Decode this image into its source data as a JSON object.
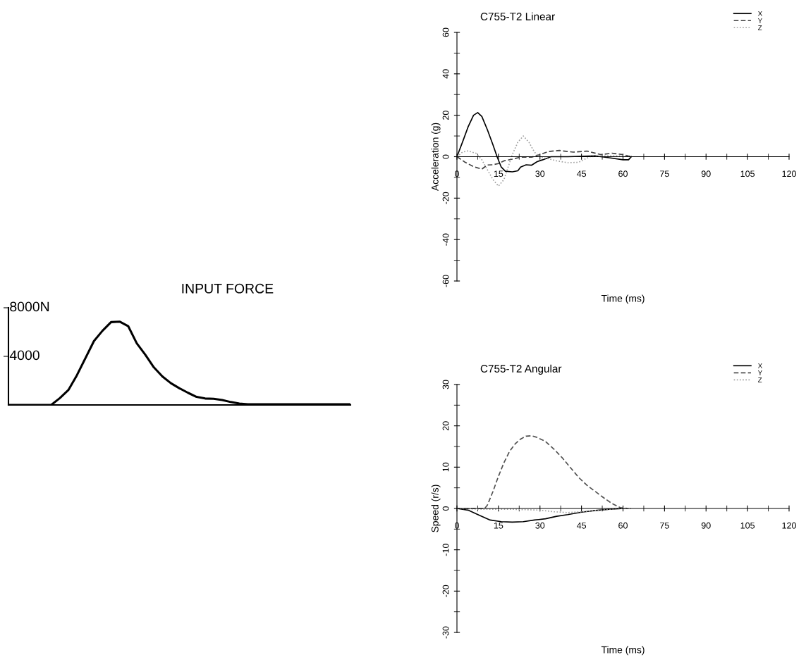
{
  "chart_data": [
    {
      "type": "line",
      "title": "INPUT FORCE",
      "categories": [
        null,
        null,
        null,
        null,
        null,
        null,
        null,
        null,
        null,
        null,
        null,
        null,
        null,
        null,
        null,
        null,
        null,
        null,
        null,
        null,
        null,
        null,
        null,
        null,
        null,
        null,
        null,
        null,
        null,
        null,
        null,
        null,
        null,
        null,
        null,
        null,
        null,
        null,
        null,
        null,
        null
      ],
      "series": [
        {
          "color": "#000000",
          "values": [
            0,
            0,
            0,
            0,
            0,
            0,
            560,
            1220,
            2440,
            3850,
            5260,
            6110,
            6820,
            6860,
            6490,
            5080,
            4140,
            3100,
            2350,
            1790,
            1370,
            1000,
            660,
            530,
            510,
            410,
            240,
            110,
            60,
            60,
            60,
            60,
            60,
            60,
            60,
            60,
            60,
            60,
            60,
            60,
            60
          ]
        }
      ],
      "ylim": [
        0,
        8000
      ],
      "yticks": [
        {
          "value": 4000,
          "label": "4000"
        },
        {
          "value": 8000,
          "label": "8000N"
        }
      ],
      "tick_labels": "y",
      "legend": false
    },
    {
      "type": "line",
      "title": "C755-T2 Linear",
      "xlabel": "Time (ms)",
      "ylabel": "Acceleration (g)",
      "series": [
        {
          "name": "X",
          "color": "#000000",
          "line_style": "solid",
          "x": [
            0,
            2,
            4,
            6,
            7.5,
            9,
            11,
            13,
            14.5,
            16,
            17.5,
            20,
            22,
            23,
            25,
            27,
            29,
            31,
            34,
            40,
            50,
            55,
            60,
            62,
            63
          ],
          "values": [
            0,
            7,
            14.3,
            20,
            21.3,
            19.4,
            13,
            5.8,
            0,
            -5,
            -7,
            -7.3,
            -6.8,
            -5,
            -3.9,
            -4.1,
            -2.4,
            -1.5,
            0,
            0,
            0.4,
            -0.5,
            -1.5,
            -1.5,
            0
          ]
        },
        {
          "name": "Y",
          "color": "#404040",
          "line_style": "dashed",
          "x": [
            0,
            3,
            6,
            9,
            11,
            13,
            15,
            17,
            20,
            23,
            27,
            30,
            33,
            37,
            42,
            47,
            52,
            56,
            60,
            63
          ],
          "values": [
            0,
            -2.7,
            -4.8,
            -6,
            -4,
            -3.9,
            -3.3,
            -2,
            -1.2,
            -0.2,
            -0.2,
            1,
            2.5,
            3,
            2.2,
            2.7,
            1,
            1.7,
            1,
            0
          ]
        },
        {
          "name": "Z",
          "color": "#a0a0a0",
          "line_style": "dotted",
          "x": [
            0,
            2,
            4,
            7,
            9,
            11,
            13,
            15,
            17,
            18.5,
            20,
            22,
            24,
            26,
            28,
            30,
            33,
            36,
            40,
            44,
            48,
            55,
            60,
            63
          ],
          "values": [
            0,
            2.2,
            2.8,
            1.6,
            -1.5,
            -6.3,
            -11,
            -14.2,
            -11,
            -5,
            1,
            7,
            10,
            7,
            2.2,
            -0.2,
            -1,
            -2,
            -2.9,
            -2.7,
            0,
            0.4,
            0.4,
            0
          ]
        }
      ],
      "xlim": [
        0,
        120
      ],
      "xticks": [
        0,
        15,
        30,
        45,
        60,
        75,
        90,
        105,
        120
      ],
      "ylim": [
        -60,
        60
      ],
      "yticks": [
        -60,
        -40,
        -20,
        0,
        20,
        40,
        60
      ],
      "legend": "top right",
      "grid": false
    },
    {
      "type": "line",
      "title": "C755-T2 Angular",
      "xlabel": "Time (ms)",
      "ylabel": "Speed (r/s)",
      "series": [
        {
          "name": "X",
          "color": "#000000",
          "line_style": "solid",
          "x": [
            0,
            4,
            8,
            12,
            16,
            20,
            24,
            28,
            32,
            36,
            40,
            45,
            50,
            55,
            60
          ],
          "values": [
            0,
            -0.4,
            -1.6,
            -2.8,
            -3.2,
            -3.3,
            -3.2,
            -2.8,
            -2.5,
            -1.9,
            -1.5,
            -0.9,
            -0.5,
            -0.2,
            0
          ]
        },
        {
          "name": "Y",
          "color": "#505050",
          "line_style": "dashed",
          "x": [
            0,
            10,
            11,
            13,
            15,
            17,
            19,
            21,
            23,
            25,
            27,
            29,
            32,
            35,
            38,
            41,
            44,
            47,
            50,
            53,
            56,
            59,
            62
          ],
          "values": [
            0,
            0,
            0.8,
            4.1,
            7.8,
            11.1,
            13.8,
            15.6,
            16.8,
            17.5,
            17.6,
            17.2,
            16.2,
            14.4,
            12.3,
            9.9,
            7.5,
            5.6,
            4.1,
            2.6,
            1.2,
            0.2,
            0
          ]
        },
        {
          "name": "Z",
          "color": "#a0a0a0",
          "line_style": "dotted",
          "x": [
            0,
            10,
            20,
            30,
            35,
            40,
            45,
            50,
            55,
            60,
            63
          ],
          "values": [
            0,
            -0.2,
            -0.2,
            -0.4,
            -0.8,
            -1,
            -0.8,
            -0.5,
            -0.2,
            0,
            0
          ]
        }
      ],
      "xlim": [
        0,
        120
      ],
      "xticks": [
        0,
        15,
        30,
        45,
        60,
        75,
        90,
        105,
        120
      ],
      "ylim": [
        -30,
        30
      ],
      "yticks": [
        -30,
        -20,
        -10,
        0,
        10,
        20,
        30
      ],
      "legend": "top right",
      "grid": false
    }
  ]
}
